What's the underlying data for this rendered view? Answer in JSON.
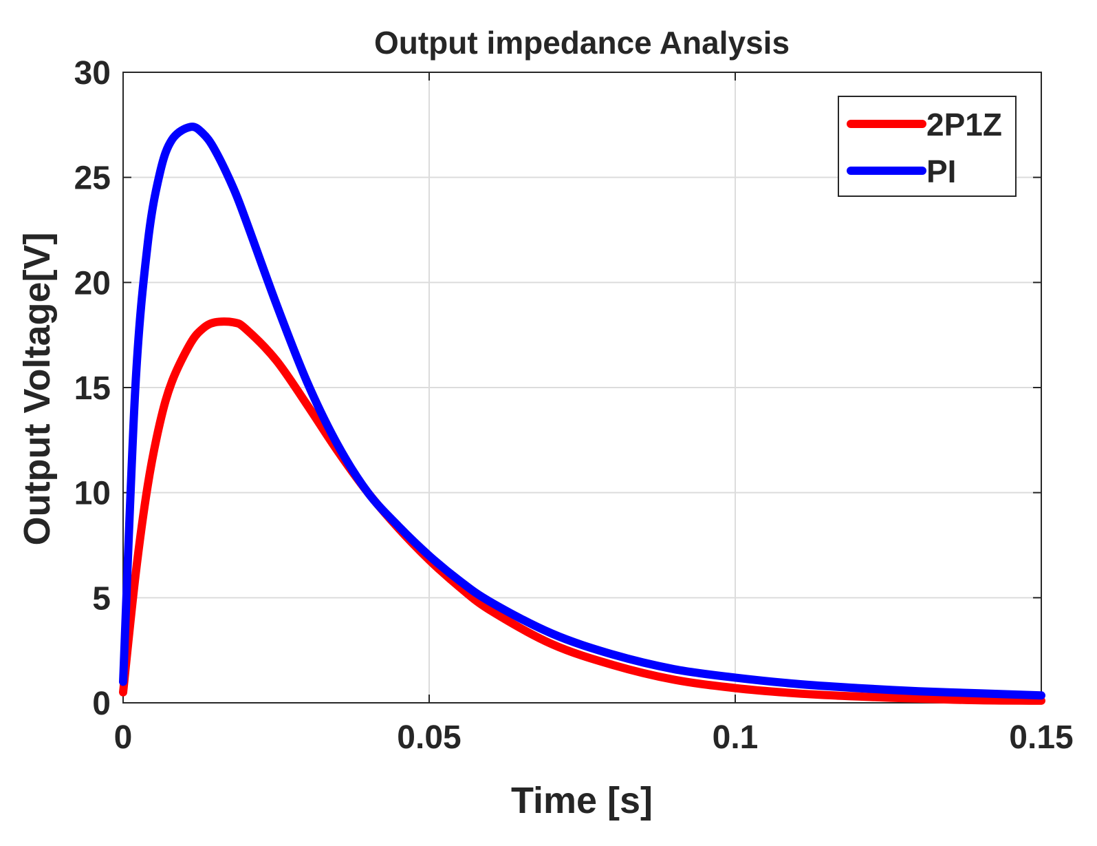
{
  "chart_data": {
    "type": "line",
    "title": "Output impedance Analysis",
    "xlabel": "Time [s]",
    "ylabel": "Output Voltage[V]",
    "xlim": [
      0,
      0.15
    ],
    "ylim": [
      0,
      30
    ],
    "xticks": [
      0,
      0.05,
      0.1,
      0.15
    ],
    "xtick_labels": [
      "0",
      "0.05",
      "0.1",
      "0.15"
    ],
    "yticks": [
      0,
      5,
      10,
      15,
      20,
      25,
      30
    ],
    "ytick_labels": [
      "0",
      "5",
      "10",
      "15",
      "20",
      "25",
      "30"
    ],
    "grid": true,
    "legend_position": "top-right",
    "x": [
      0,
      0.002,
      0.004,
      0.006,
      0.008,
      0.011,
      0.013,
      0.015,
      0.018,
      0.02,
      0.025,
      0.03,
      0.035,
      0.04,
      0.045,
      0.05,
      0.055,
      0.06,
      0.07,
      0.08,
      0.09,
      0.1,
      0.11,
      0.12,
      0.13,
      0.14,
      0.15
    ],
    "series": [
      {
        "name": "2P1Z",
        "color": "#ff0000",
        "values": [
          0.5,
          6.0,
          10.3,
          13.3,
          15.3,
          17.1,
          17.8,
          18.1,
          18.1,
          17.8,
          16.3,
          14.2,
          12.0,
          10.0,
          8.3,
          6.8,
          5.5,
          4.4,
          2.8,
          1.8,
          1.1,
          0.7,
          0.45,
          0.3,
          0.2,
          0.12,
          0.1
        ]
      },
      {
        "name": "PI",
        "color": "#0000ff",
        "values": [
          1.0,
          15.0,
          21.8,
          25.2,
          26.8,
          27.4,
          27.1,
          26.3,
          24.5,
          23.0,
          19.0,
          15.3,
          12.3,
          10.0,
          8.4,
          7.0,
          5.8,
          4.8,
          3.3,
          2.3,
          1.6,
          1.2,
          0.9,
          0.7,
          0.55,
          0.45,
          0.35
        ]
      }
    ]
  }
}
